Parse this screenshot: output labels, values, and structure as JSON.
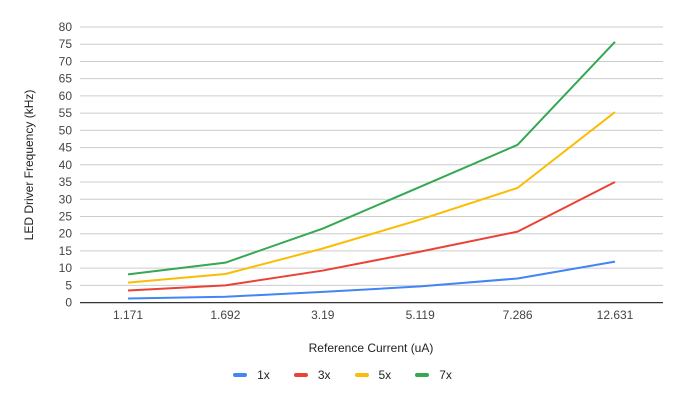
{
  "chart_data": {
    "type": "line",
    "title": "",
    "xlabel": "Reference Current (uA)",
    "ylabel": "LED Driver Frequency (kHz)",
    "categories": [
      "1.171",
      "1.692",
      "3.19",
      "5.119",
      "7.286",
      "12.631"
    ],
    "ylim": [
      0,
      80
    ],
    "yticks": [
      0,
      5,
      10,
      15,
      20,
      25,
      30,
      35,
      40,
      45,
      50,
      55,
      60,
      65,
      70,
      75,
      80
    ],
    "grid": true,
    "legend_position": "bottom",
    "series": [
      {
        "name": "1x",
        "color": "#4285F4",
        "values": [
          1.2,
          1.7,
          3.1,
          4.7,
          7.0,
          11.9
        ]
      },
      {
        "name": "3x",
        "color": "#EA4335",
        "values": [
          3.5,
          5.0,
          9.3,
          14.8,
          20.6,
          35.0
        ]
      },
      {
        "name": "5x",
        "color": "#FBBC04",
        "values": [
          5.8,
          8.3,
          15.7,
          24.1,
          33.3,
          55.3
        ]
      },
      {
        "name": "7x",
        "color": "#34A853",
        "values": [
          8.2,
          11.6,
          21.5,
          33.6,
          45.8,
          75.7
        ]
      }
    ]
  },
  "legend": {
    "items": [
      {
        "label": "1x",
        "color": "#4285F4"
      },
      {
        "label": "3x",
        "color": "#EA4335"
      },
      {
        "label": "5x",
        "color": "#FBBC04"
      },
      {
        "label": "7x",
        "color": "#34A853"
      }
    ]
  }
}
